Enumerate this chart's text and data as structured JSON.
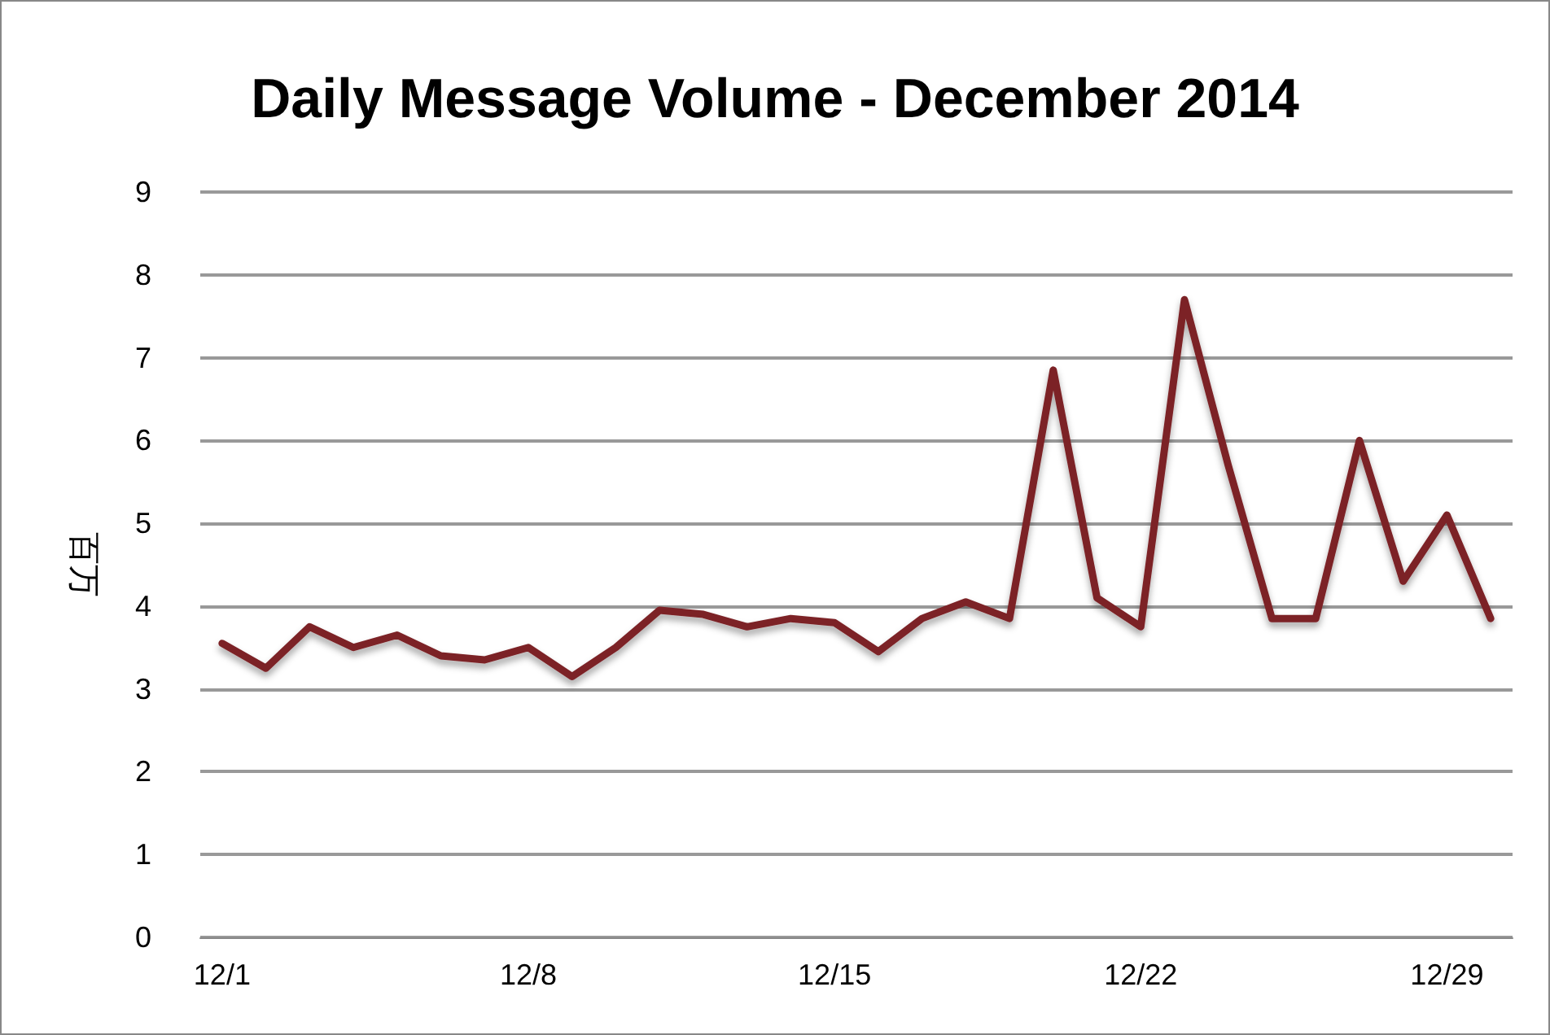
{
  "chart_data": {
    "type": "line",
    "title": "Daily Message Volume - December 2014",
    "ylabel": "百万",
    "categories": [
      "12/1",
      null,
      null,
      null,
      null,
      null,
      null,
      "12/8",
      null,
      null,
      null,
      null,
      null,
      null,
      "12/15",
      null,
      null,
      null,
      null,
      null,
      null,
      "12/22",
      null,
      null,
      null,
      null,
      null,
      null,
      "12/29",
      null
    ],
    "series": [
      {
        "color": "#7b2226",
        "values": [
          3.55,
          3.25,
          3.75,
          3.5,
          3.65,
          3.4,
          3.35,
          3.5,
          3.15,
          3.5,
          3.95,
          3.9,
          3.75,
          3.85,
          3.8,
          3.45,
          3.85,
          4.05,
          3.85,
          6.85,
          4.1,
          3.75,
          7.7,
          5.7,
          3.85,
          3.85,
          6.0,
          4.3,
          5.1,
          3.85
        ]
      }
    ],
    "ylim": [
      0,
      9
    ],
    "yticks": [
      0,
      1,
      2,
      3,
      4,
      5,
      6,
      7,
      8,
      9
    ],
    "grid": "y",
    "marker": "none",
    "line_style": "solid"
  }
}
